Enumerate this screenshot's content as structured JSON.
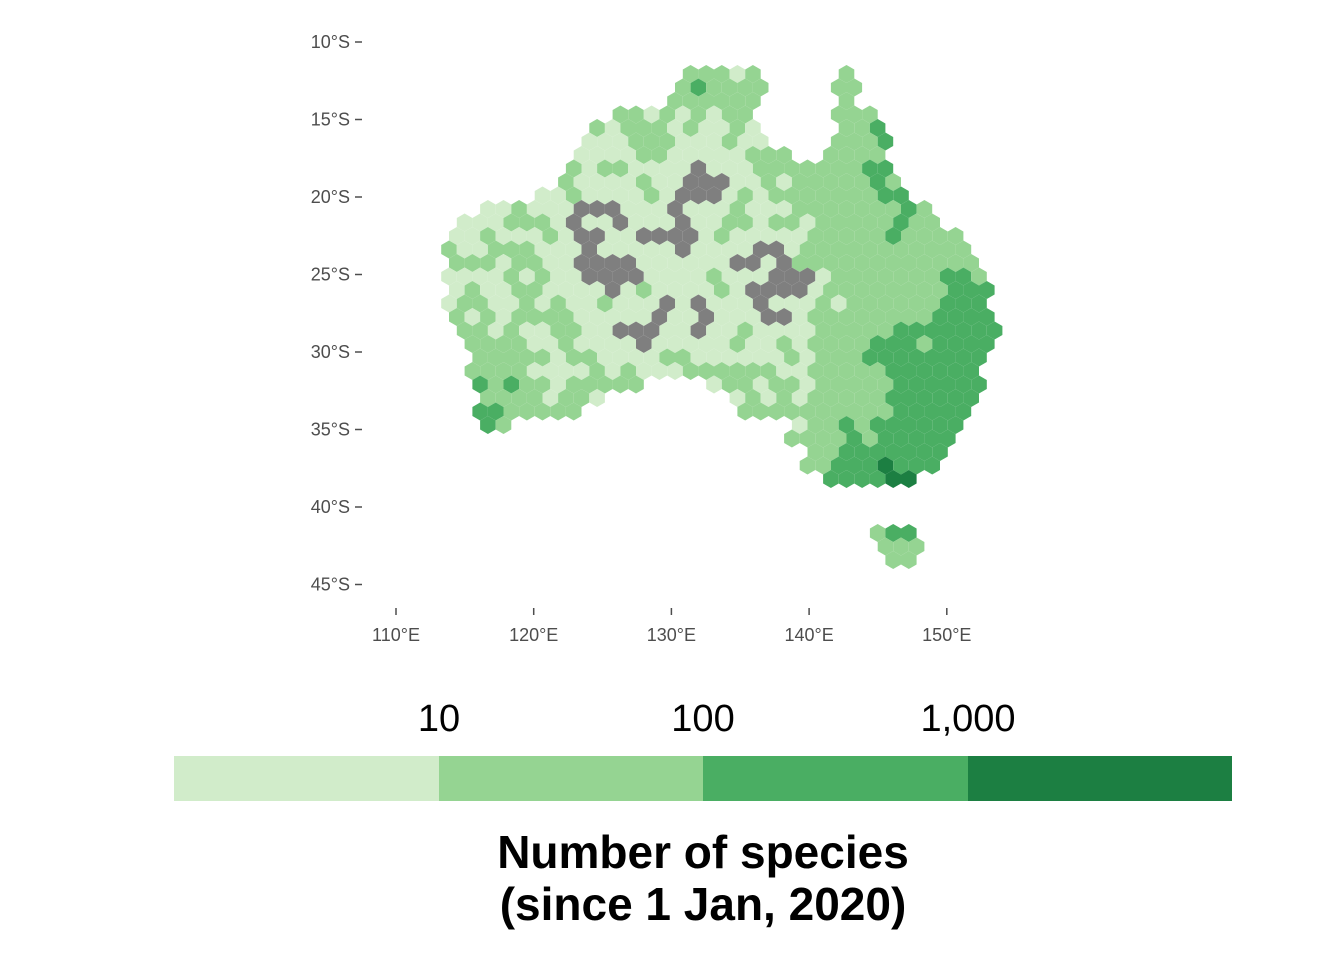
{
  "map": {
    "y_axis": {
      "ticks": [
        {
          "value": -10,
          "label": "10°S"
        },
        {
          "value": -15,
          "label": "15°S"
        },
        {
          "value": -20,
          "label": "20°S"
        },
        {
          "value": -25,
          "label": "25°S"
        },
        {
          "value": -30,
          "label": "30°S"
        },
        {
          "value": -35,
          "label": "35°S"
        },
        {
          "value": -40,
          "label": "40°S"
        },
        {
          "value": -45,
          "label": "45°S"
        }
      ]
    },
    "x_axis": {
      "ticks": [
        {
          "value": 110,
          "label": "110°E"
        },
        {
          "value": 120,
          "label": "120°E"
        },
        {
          "value": 130,
          "label": "130°E"
        },
        {
          "value": 140,
          "label": "140°E"
        },
        {
          "value": 150,
          "label": "150°E"
        }
      ]
    },
    "fill_scale": "log10 binned",
    "no_data_color": "#7f7f7f",
    "background": "#ffffff"
  },
  "legend": {
    "title_line1": "Number of species",
    "title_line2": "(since 1 Jan, 2020)",
    "breaks": [
      {
        "value": 10,
        "label": "10"
      },
      {
        "value": 100,
        "label": "100"
      },
      {
        "value": 1000,
        "label": "1,000"
      }
    ],
    "bins": [
      {
        "range": "< 10",
        "color": "#d1ecca"
      },
      {
        "range": "10 - 100",
        "color": "#95d492"
      },
      {
        "range": "100 - 1,000",
        "color": "#4aae63"
      },
      {
        "range": "> 1,000",
        "color": "#1c7f42"
      }
    ]
  }
}
